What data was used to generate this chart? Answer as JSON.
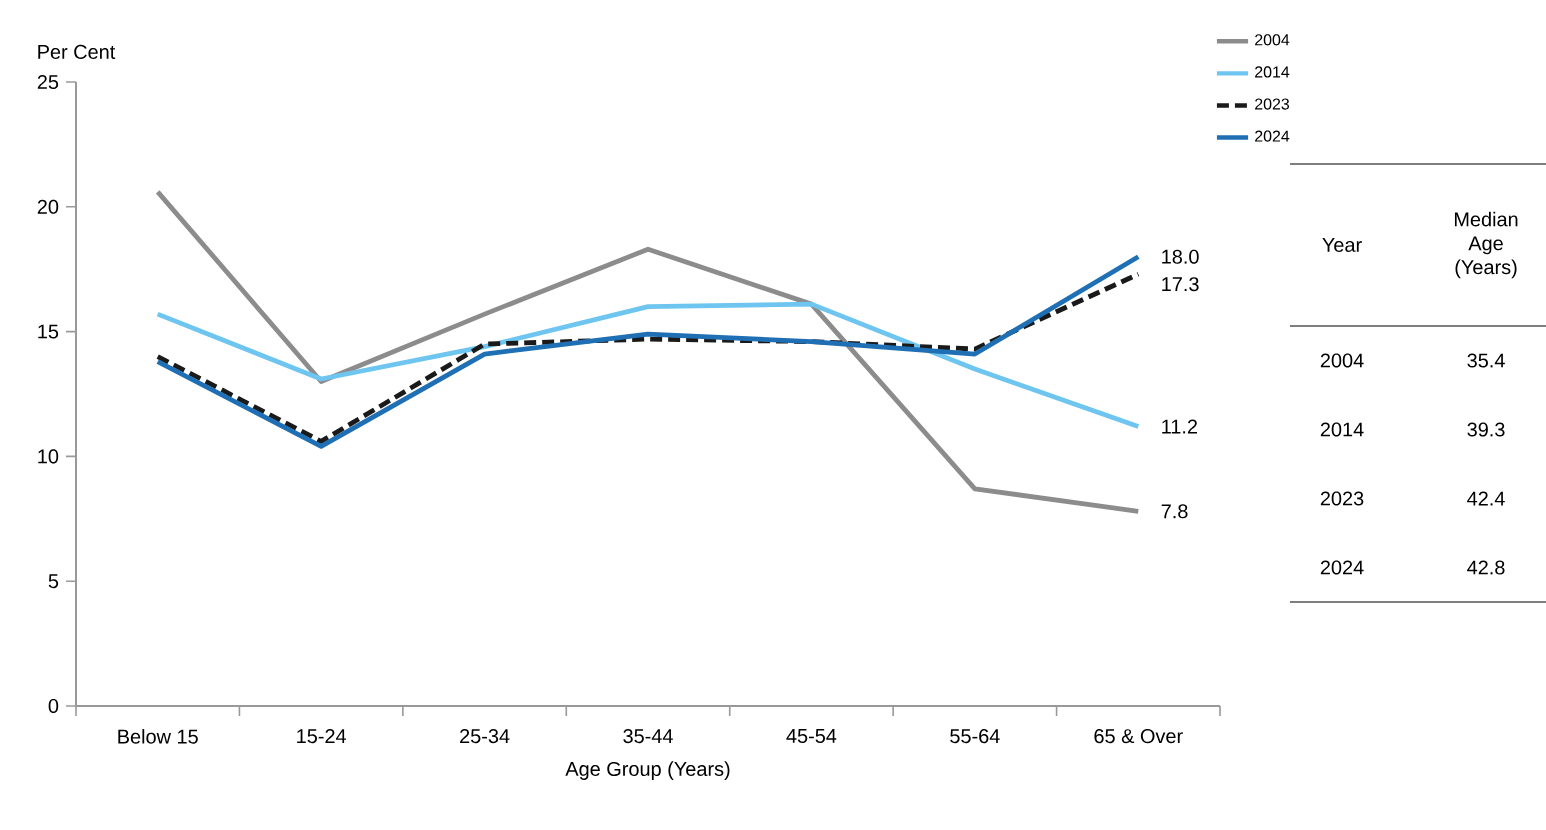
{
  "chart_data": [
    {
      "type": "line",
      "ylabel": "Per Cent",
      "xlabel": "Age Group (Years)",
      "categories": [
        "Below 15",
        "15-24",
        "25-34",
        "35-44",
        "45-54",
        "55-64",
        "65 & Over"
      ],
      "ylim": [
        0,
        25
      ],
      "yticks": [
        0,
        5,
        10,
        15,
        20,
        25
      ],
      "legend": "top right",
      "series": [
        {
          "name": "2004",
          "color": "#8c8c8c",
          "line_style": "solid",
          "values": [
            20.6,
            13.0,
            15.7,
            18.3,
            16.1,
            8.7,
            7.8
          ],
          "value_labels": [
            null,
            null,
            null,
            null,
            null,
            null,
            "7.8"
          ]
        },
        {
          "name": "2014",
          "color": "#6ec6f0",
          "line_style": "solid",
          "values": [
            15.7,
            13.1,
            14.4,
            16.0,
            16.1,
            13.5,
            11.2
          ],
          "value_labels": [
            null,
            null,
            null,
            null,
            null,
            null,
            "11.2"
          ]
        },
        {
          "name": "2023",
          "color": "#1a1a1a",
          "line_style": "dashed",
          "values": [
            14.0,
            10.6,
            14.5,
            14.7,
            14.6,
            14.3,
            17.3
          ],
          "value_labels": [
            null,
            null,
            null,
            null,
            null,
            null,
            "17.3"
          ]
        },
        {
          "name": "2024",
          "color": "#1f6fb4",
          "line_style": "solid",
          "values": [
            13.8,
            10.4,
            14.1,
            14.9,
            14.6,
            14.1,
            18.0
          ],
          "value_labels": [
            null,
            null,
            null,
            null,
            null,
            null,
            "18.0"
          ]
        }
      ]
    },
    {
      "type": "other",
      "xlabel": "Year",
      "ylabel": "Median Age (Years)",
      "categories": [
        "2004",
        "2014",
        "2023",
        "2024"
      ],
      "values": [
        35.4,
        39.3,
        42.4,
        42.8
      ],
      "data_labels": true
    }
  ]
}
